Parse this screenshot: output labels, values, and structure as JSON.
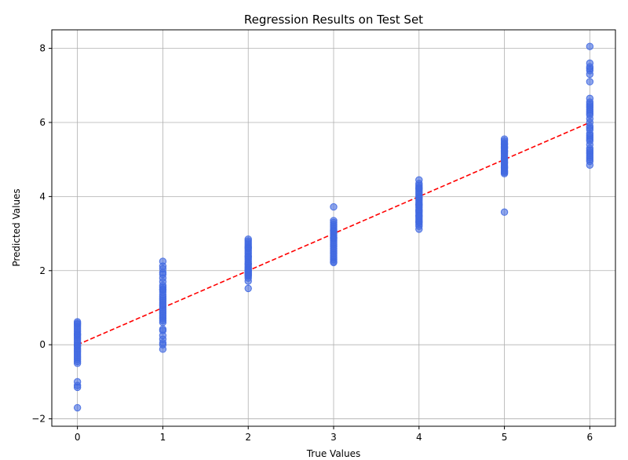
{
  "chart_data": {
    "type": "scatter",
    "title": "Regression Results on Test Set",
    "xlabel": "True Values",
    "ylabel": "Predicted Values",
    "xlim": [
      -0.3,
      6.3
    ],
    "ylim": [
      -2.2,
      8.5
    ],
    "xticks": [
      0,
      1,
      2,
      3,
      4,
      5,
      6
    ],
    "yticks": [
      -2,
      0,
      2,
      4,
      6,
      8
    ],
    "grid": true,
    "marker_color": "#4169E1",
    "reference_line": {
      "label": "",
      "color": "#ff0000",
      "style": "dashed",
      "x": [
        0,
        6
      ],
      "y": [
        0,
        6
      ]
    },
    "series": [
      {
        "x": [
          0,
          0,
          0,
          0,
          0,
          0,
          0,
          0,
          0,
          0,
          0,
          0,
          0,
          0,
          0,
          0,
          0,
          0,
          0,
          0,
          0,
          0,
          0,
          0,
          0,
          0,
          0,
          0,
          0,
          0,
          1,
          1,
          1,
          1,
          1,
          1,
          1,
          1,
          1,
          1,
          1,
          1,
          1,
          1,
          1,
          1,
          1,
          1,
          1,
          1,
          1,
          1,
          1,
          1,
          1,
          1,
          1,
          1,
          1,
          1,
          1,
          1,
          1,
          1,
          1,
          2,
          2,
          2,
          2,
          2,
          2,
          2,
          2,
          2,
          2,
          2,
          2,
          2,
          2,
          2,
          2,
          2,
          2,
          2,
          2,
          2,
          2,
          2,
          2,
          2,
          2,
          2,
          2,
          2,
          2,
          2,
          2,
          3,
          3,
          3,
          3,
          3,
          3,
          3,
          3,
          3,
          3,
          3,
          3,
          3,
          3,
          3,
          3,
          3,
          3,
          3,
          3,
          3,
          3,
          3,
          3,
          3,
          3,
          3,
          4,
          4,
          4,
          4,
          4,
          4,
          4,
          4,
          4,
          4,
          4,
          4,
          4,
          4,
          4,
          4,
          4,
          4,
          4,
          4,
          4,
          4,
          4,
          4,
          4,
          4,
          4,
          4,
          4,
          4,
          4,
          4,
          5,
          5,
          5,
          5,
          5,
          5,
          5,
          5,
          5,
          5,
          5,
          5,
          5,
          5,
          5,
          5,
          5,
          5,
          5,
          5,
          5,
          5,
          5,
          5,
          5,
          5,
          5,
          5,
          6,
          6,
          6,
          6,
          6,
          6,
          6,
          6,
          6,
          6,
          6,
          6,
          6,
          6,
          6,
          6,
          6,
          6,
          6,
          6,
          6,
          6,
          6,
          6,
          6,
          6,
          6,
          6,
          6,
          6,
          6,
          6,
          6,
          6,
          6,
          6
        ],
        "y": [
          0.62,
          0.58,
          0.55,
          0.5,
          0.45,
          0.4,
          0.35,
          0.3,
          0.25,
          0.2,
          0.15,
          0.1,
          0.05,
          0.0,
          -0.05,
          -0.1,
          -0.15,
          -0.2,
          -0.25,
          -0.3,
          -0.35,
          -0.4,
          -0.45,
          -0.5,
          -1.0,
          -1.1,
          -1.15,
          -1.7,
          0.28,
          -0.02,
          2.25,
          2.12,
          2.05,
          1.95,
          1.9,
          1.8,
          1.7,
          1.6,
          1.55,
          1.5,
          1.42,
          1.35,
          1.3,
          1.25,
          1.2,
          1.15,
          1.1,
          1.05,
          1.0,
          0.95,
          0.9,
          0.85,
          0.8,
          0.75,
          0.7,
          0.65,
          0.6,
          0.42,
          0.38,
          0.25,
          0.15,
          0.05,
          0.0,
          -0.12,
          1.48,
          2.85,
          2.8,
          2.75,
          2.7,
          2.65,
          2.6,
          2.55,
          2.5,
          2.45,
          2.4,
          2.35,
          2.3,
          2.25,
          2.2,
          2.15,
          2.1,
          2.05,
          2.0,
          1.95,
          1.92,
          1.88,
          1.85,
          1.8,
          1.72,
          1.52,
          2.62,
          2.38,
          2.18,
          2.08,
          2.02,
          1.98,
          1.9,
          3.72,
          3.35,
          3.3,
          3.25,
          3.2,
          3.15,
          3.1,
          3.05,
          3.0,
          2.95,
          2.9,
          2.85,
          2.8,
          2.75,
          2.7,
          2.65,
          2.6,
          2.55,
          2.5,
          2.45,
          2.4,
          2.35,
          2.3,
          2.25,
          2.22,
          3.08,
          2.88,
          4.45,
          4.35,
          4.3,
          4.25,
          4.2,
          4.15,
          4.1,
          4.05,
          4.0,
          3.95,
          3.9,
          3.85,
          3.8,
          3.75,
          3.7,
          3.65,
          3.6,
          3.55,
          3.5,
          3.45,
          3.4,
          3.35,
          3.3,
          3.25,
          3.2,
          3.12,
          4.22,
          3.98,
          3.78,
          3.62,
          3.48,
          3.32,
          5.55,
          5.5,
          5.45,
          5.4,
          5.35,
          5.3,
          5.25,
          5.2,
          5.15,
          5.1,
          5.05,
          5.0,
          4.95,
          4.9,
          4.85,
          4.8,
          4.75,
          4.7,
          4.65,
          4.62,
          3.58,
          5.42,
          5.22,
          5.02,
          4.92,
          4.78,
          4.68,
          5.32,
          8.05,
          7.6,
          7.5,
          7.45,
          7.4,
          7.3,
          7.1,
          6.65,
          6.55,
          6.5,
          6.45,
          6.4,
          6.35,
          6.3,
          6.25,
          6.2,
          6.0,
          5.9,
          5.8,
          5.7,
          5.65,
          5.6,
          5.55,
          5.5,
          5.4,
          5.3,
          5.25,
          5.2,
          5.15,
          5.1,
          5.05,
          5.0,
          4.95,
          4.85,
          6.1,
          5.85
        ]
      }
    ]
  }
}
